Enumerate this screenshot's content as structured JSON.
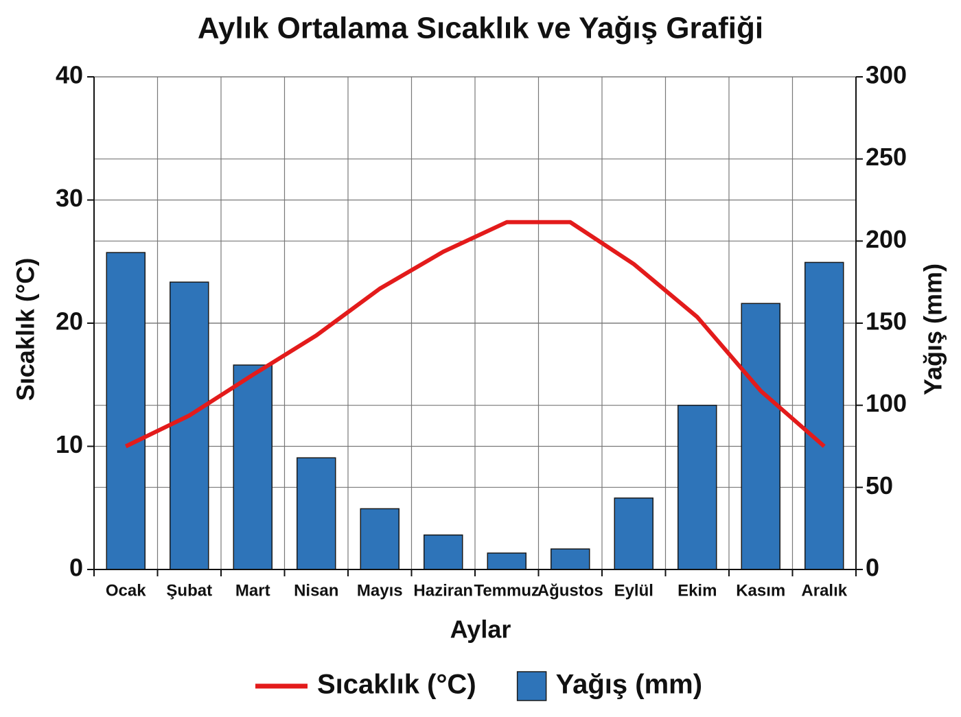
{
  "chart_data": {
    "type": "combo",
    "title": "Aylık Ortalama Sıcaklık ve Yağış Grafiği",
    "x_label": "Aylar",
    "y_label": "Sıcaklık (°C)",
    "y2_label": "Yağış (mm)",
    "categories": [
      "Ocak",
      "Şubat",
      "Mart",
      "Nisan",
      "Mayıs",
      "Haziran",
      "Temmuz",
      "Ağustos",
      "Eylül",
      "Ekim",
      "Kasım",
      "Aralık"
    ],
    "series": [
      {
        "name": "Sıcaklık (°C)",
        "type": "line",
        "axis": "y",
        "color": "#e31b1b",
        "values": [
          10,
          12.5,
          15.8,
          19,
          22.8,
          25.8,
          28.2,
          28.2,
          24.8,
          20.5,
          14.5,
          10
        ]
      },
      {
        "name": "Yağış (mm)",
        "type": "bar",
        "axis": "y2",
        "color": "#2e74b9",
        "values": [
          193,
          175,
          124.5,
          68,
          37,
          21,
          10,
          12.5,
          43.5,
          100,
          162,
          187
        ]
      }
    ],
    "ylim": [
      0,
      40
    ],
    "yticks": [
      0,
      10,
      20,
      30,
      40
    ],
    "y2lim": [
      0,
      300
    ],
    "y2ticks": [
      0,
      50,
      100,
      150,
      200,
      250,
      300
    ],
    "grid": true,
    "legend": "bottom"
  }
}
